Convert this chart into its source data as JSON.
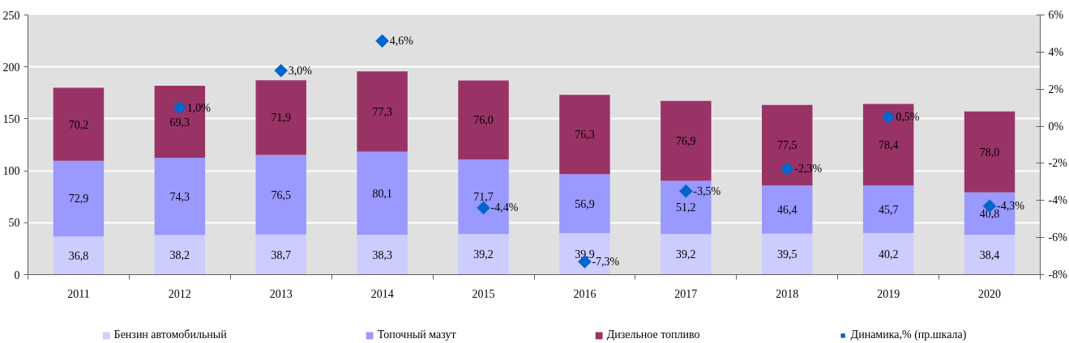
{
  "chart_data": {
    "type": "bar",
    "stacked": true,
    "categories": [
      "2011",
      "2012",
      "2013",
      "2014",
      "2015",
      "2016",
      "2017",
      "2018",
      "2019",
      "2020"
    ],
    "ylim": [
      0,
      250
    ],
    "yticks": [
      0,
      50,
      100,
      150,
      200,
      250
    ],
    "y2lim": [
      -8,
      6
    ],
    "y2ticks": [
      {
        "value": -8,
        "label": "-8%"
      },
      {
        "value": -6,
        "label": "-6%"
      },
      {
        "value": -4,
        "label": "-4%"
      },
      {
        "value": -2,
        "label": "-2%"
      },
      {
        "value": 0,
        "label": "0%"
      },
      {
        "value": 2,
        "label": "2%"
      },
      {
        "value": 4,
        "label": "4%"
      },
      {
        "value": 6,
        "label": "6%"
      }
    ],
    "grid": "y",
    "legend": "bottom",
    "series": [
      {
        "name": "Бензин автомобильный",
        "color": "#ccccff",
        "values": [
          36.8,
          38.2,
          38.7,
          38.3,
          39.2,
          39.9,
          39.2,
          39.5,
          40.2,
          38.4
        ],
        "value_labels": [
          "36,8",
          "38,2",
          "38,7",
          "38,3",
          "39,2",
          "39,9",
          "39,2",
          "39,5",
          "40,2",
          "38,4"
        ]
      },
      {
        "name": "Топочный мазут",
        "color": "#9999ff",
        "values": [
          72.9,
          74.3,
          76.5,
          80.1,
          71.7,
          56.9,
          51.2,
          46.4,
          45.7,
          40.8
        ],
        "value_labels": [
          "72,9",
          "74,3",
          "76,5",
          "80,1",
          "71,7",
          "56,9",
          "51,2",
          "46,4",
          "45,7",
          "40,8"
        ]
      },
      {
        "name": "Дизельное топливо",
        "color": "#993366",
        "values": [
          70.2,
          69.3,
          71.9,
          77.3,
          76.0,
          76.3,
          76.9,
          77.5,
          78.4,
          78.0
        ],
        "value_labels": [
          "70,2",
          "69,3",
          "71,9",
          "77,3",
          "76,0",
          "76,3",
          "76,9",
          "77,5",
          "78,4",
          "78,0"
        ]
      },
      {
        "name": "Динамика,% (пр.шкала)",
        "type": "scatter",
        "axis": "y2",
        "marker": "diamond",
        "color": "#0066cc",
        "values": [
          null,
          1.0,
          3.0,
          4.6,
          -4.4,
          -7.3,
          -3.5,
          -2.3,
          0.5,
          -4.3
        ],
        "value_labels": [
          null,
          "1,0%",
          "3,0%",
          "4,6%",
          "-4,4%",
          "-7,3%",
          "-3,5%",
          "-2,3%",
          "0,5%",
          "-4,3%"
        ]
      }
    ]
  }
}
